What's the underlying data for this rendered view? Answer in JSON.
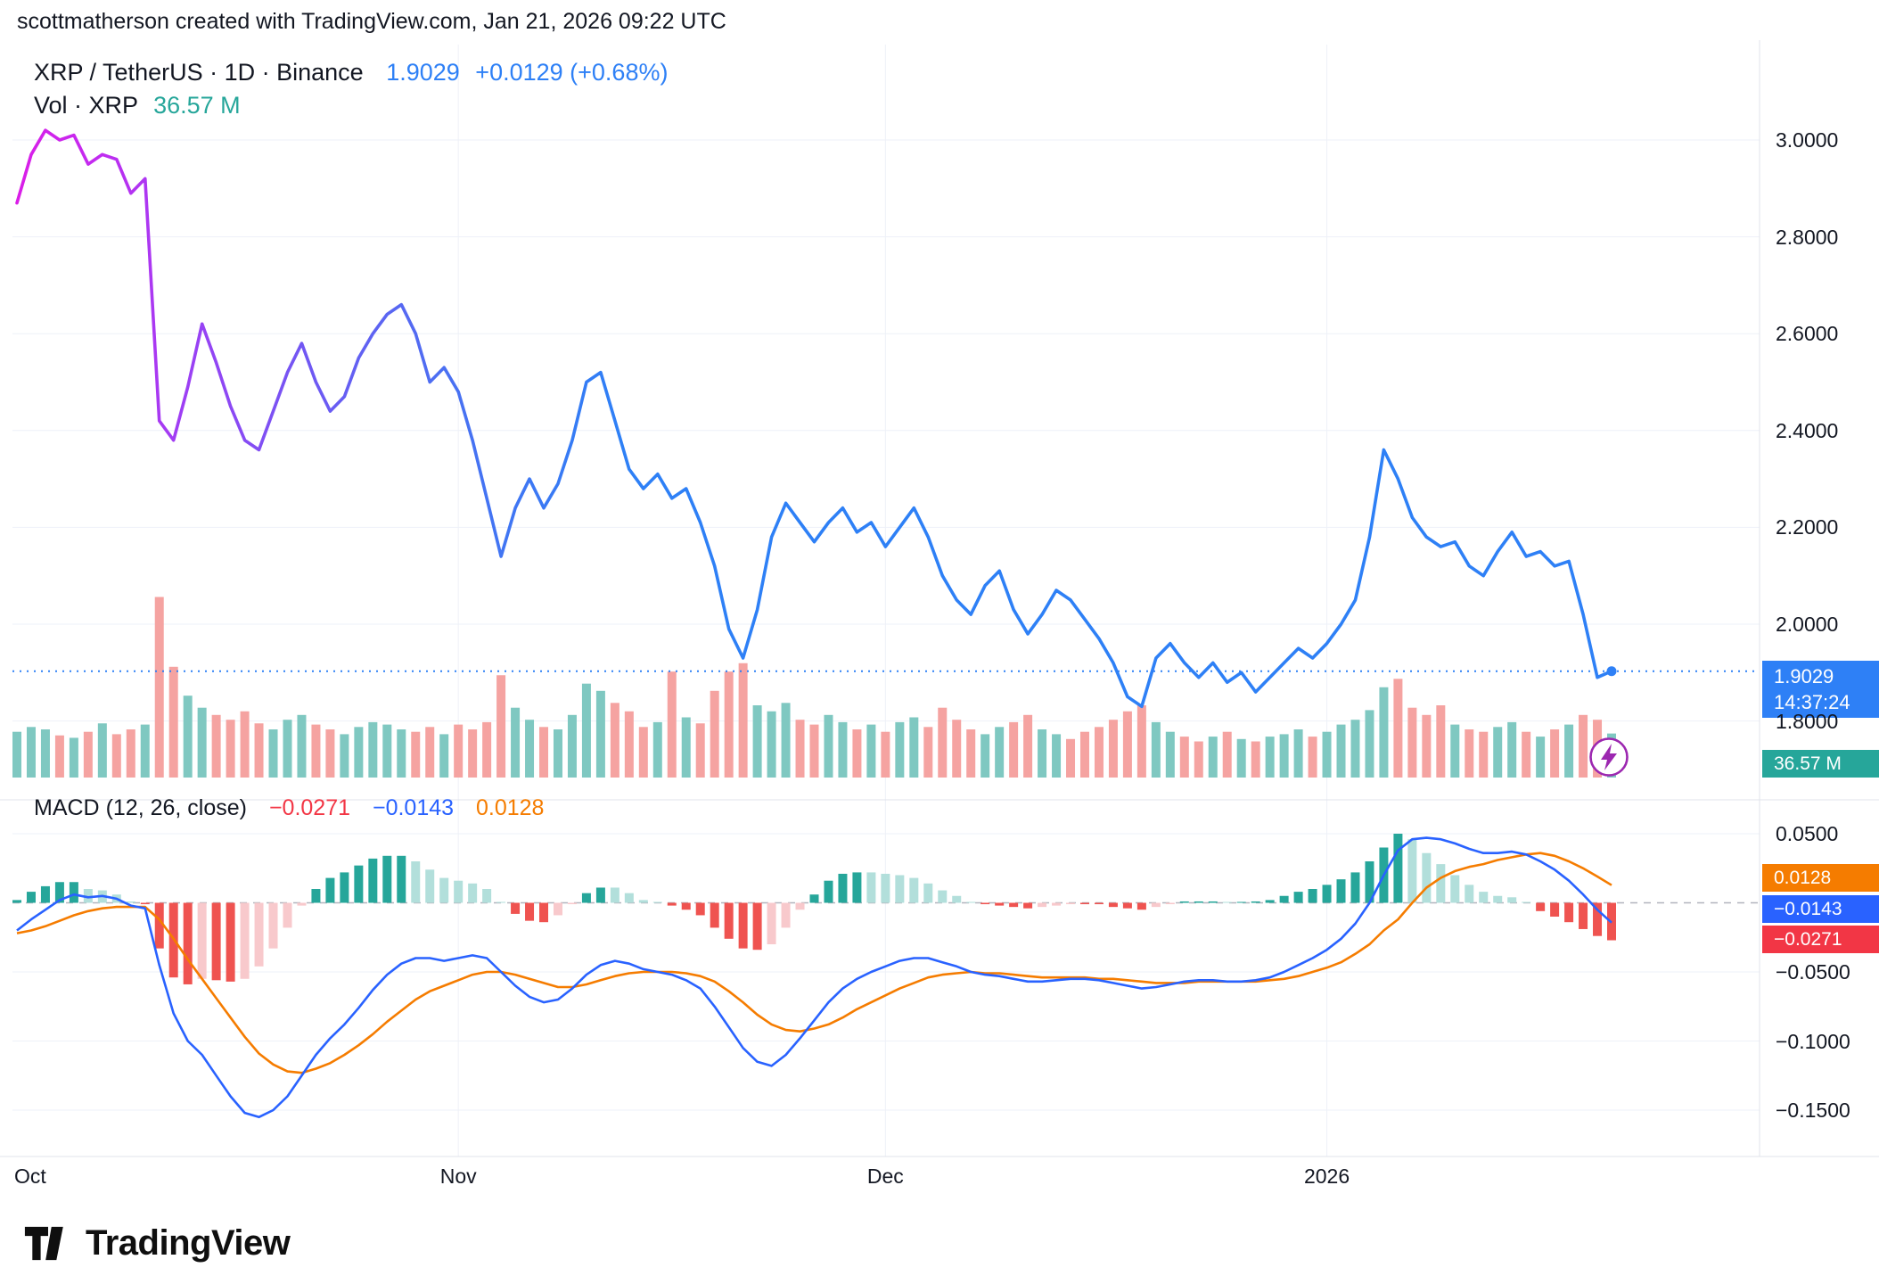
{
  "attribution": "scottmatherson created with TradingView.com, Jan 21, 2026 09:22 UTC",
  "header": {
    "title": "XRP / TetherUS · 1D · Binance",
    "price": "1.9029",
    "change": "+0.0129 (+0.68%)",
    "vol_label": "Vol · XRP",
    "vol_value": "36.57 M"
  },
  "macd_row": {
    "label": "MACD",
    "params": "(12, 26, close)",
    "hist": "−0.0271",
    "macd": "−0.0143",
    "signal": "0.0128"
  },
  "badges": {
    "price": "1.9029",
    "countdown": "14:37:24",
    "volume": "36.57 M",
    "signal": "0.0128",
    "macd": "−0.0143",
    "hist": "−0.0271"
  },
  "logo": {
    "text": "TradingView"
  },
  "colors": {
    "price_line_end": "#2e80f6",
    "macd_line": "#2962ff",
    "signal_line": "#f57c00",
    "vol_up": "#7fc8c1",
    "vol_down": "#f5a3a1",
    "hist_pos": "#26a69a",
    "hist_pos_light": "#b2dfdb",
    "hist_neg": "#ef5350",
    "hist_neg_light": "#f8c9cc",
    "badge_price": "#2e80f6",
    "badge_vol": "#26a69a",
    "badge_signal": "#f57c00",
    "badge_macd": "#2962ff",
    "badge_hist": "#f23645",
    "grid": "#eef1f8",
    "separator": "#e0e3eb",
    "zero_dash": "#b2b5be",
    "flag_purple": "#9c27b0",
    "accent_magenta": "#da1ee8",
    "text": "#131722"
  },
  "chart_data": {
    "type": "line",
    "title": "XRP / TetherUS · 1D · Binance",
    "last_price": 1.9029,
    "x_ticks": [
      {
        "label": "Oct",
        "day": 0
      },
      {
        "label": "Nov",
        "day": 31
      },
      {
        "label": "Dec",
        "day": 61
      },
      {
        "label": "2026",
        "day": 92
      }
    ],
    "price_axis": {
      "ticks": [
        3.0,
        2.8,
        2.6,
        2.4,
        2.2,
        2.0,
        1.8
      ]
    },
    "macd_axis": {
      "ticks": [
        0.05,
        -0.05,
        -0.1,
        -0.15
      ]
    },
    "price_gradient": [
      {
        "o": 0,
        "c": "#da1ee8"
      },
      {
        "o": 0.05,
        "c": "#c22bf0"
      },
      {
        "o": 0.11,
        "c": "#9a41f4"
      },
      {
        "o": 0.18,
        "c": "#7157f3"
      },
      {
        "o": 0.27,
        "c": "#4a70f2"
      },
      {
        "o": 0.38,
        "c": "#2e80f6"
      },
      {
        "o": 1,
        "c": "#2e80f6"
      }
    ],
    "close": [
      2.87,
      2.97,
      3.02,
      3.0,
      3.01,
      2.95,
      2.97,
      2.96,
      2.89,
      2.92,
      2.42,
      2.38,
      2.49,
      2.62,
      2.54,
      2.45,
      2.38,
      2.36,
      2.44,
      2.52,
      2.58,
      2.5,
      2.44,
      2.47,
      2.55,
      2.6,
      2.64,
      2.66,
      2.6,
      2.5,
      2.53,
      2.48,
      2.38,
      2.26,
      2.14,
      2.24,
      2.3,
      2.24,
      2.29,
      2.38,
      2.5,
      2.52,
      2.42,
      2.32,
      2.28,
      2.31,
      2.26,
      2.28,
      2.21,
      2.12,
      1.99,
      1.93,
      2.03,
      2.18,
      2.25,
      2.21,
      2.17,
      2.21,
      2.24,
      2.19,
      2.21,
      2.16,
      2.2,
      2.24,
      2.18,
      2.1,
      2.05,
      2.02,
      2.08,
      2.11,
      2.03,
      1.98,
      2.02,
      2.07,
      2.05,
      2.01,
      1.97,
      1.92,
      1.85,
      1.83,
      1.93,
      1.96,
      1.92,
      1.89,
      1.92,
      1.88,
      1.9,
      1.86,
      1.89,
      1.92,
      1.95,
      1.93,
      1.96,
      2.0,
      2.05,
      2.18,
      2.36,
      2.3,
      2.22,
      2.18,
      2.16,
      2.17,
      2.12,
      2.1,
      2.15,
      2.19,
      2.14,
      2.15,
      2.12,
      2.13,
      2.02,
      1.89,
      1.9029
    ],
    "volume": [
      38,
      42,
      40,
      35,
      33,
      38,
      45,
      36,
      40,
      44,
      150,
      92,
      68,
      58,
      52,
      48,
      55,
      45,
      40,
      48,
      52,
      44,
      40,
      36,
      42,
      46,
      44,
      40,
      38,
      42,
      36,
      44,
      40,
      46,
      85,
      58,
      48,
      42,
      40,
      52,
      78,
      72,
      62,
      55,
      42,
      46,
      88,
      50,
      45,
      72,
      88,
      95,
      60,
      55,
      62,
      48,
      44,
      52,
      46,
      40,
      44,
      38,
      46,
      50,
      42,
      58,
      48,
      40,
      36,
      42,
      46,
      52,
      40,
      36,
      32,
      38,
      42,
      48,
      55,
      60,
      46,
      38,
      34,
      30,
      34,
      38,
      32,
      30,
      34,
      36,
      40,
      34,
      38,
      44,
      48,
      56,
      75,
      82,
      58,
      52,
      60,
      44,
      40,
      38,
      42,
      46,
      38,
      34,
      40,
      44,
      52,
      48,
      36.57
    ],
    "macd": [
      -0.02,
      -0.012,
      -0.005,
      0.002,
      0.006,
      0.004,
      0.005,
      0.003,
      -0.002,
      -0.004,
      -0.045,
      -0.08,
      -0.1,
      -0.11,
      -0.125,
      -0.14,
      -0.152,
      -0.155,
      -0.15,
      -0.14,
      -0.125,
      -0.11,
      -0.098,
      -0.088,
      -0.076,
      -0.063,
      -0.052,
      -0.044,
      -0.04,
      -0.04,
      -0.042,
      -0.04,
      -0.038,
      -0.04,
      -0.05,
      -0.06,
      -0.068,
      -0.072,
      -0.07,
      -0.062,
      -0.052,
      -0.045,
      -0.042,
      -0.044,
      -0.048,
      -0.05,
      -0.052,
      -0.056,
      -0.062,
      -0.075,
      -0.09,
      -0.105,
      -0.115,
      -0.118,
      -0.11,
      -0.098,
      -0.085,
      -0.072,
      -0.062,
      -0.055,
      -0.05,
      -0.046,
      -0.042,
      -0.04,
      -0.04,
      -0.043,
      -0.046,
      -0.05,
      -0.052,
      -0.053,
      -0.055,
      -0.057,
      -0.057,
      -0.056,
      -0.055,
      -0.055,
      -0.056,
      -0.058,
      -0.06,
      -0.062,
      -0.061,
      -0.059,
      -0.057,
      -0.056,
      -0.056,
      -0.057,
      -0.057,
      -0.056,
      -0.054,
      -0.05,
      -0.045,
      -0.04,
      -0.034,
      -0.026,
      -0.015,
      0.0,
      0.02,
      0.038,
      0.046,
      0.047,
      0.046,
      0.043,
      0.039,
      0.036,
      0.036,
      0.037,
      0.035,
      0.03,
      0.024,
      0.016,
      0.006,
      -0.005,
      -0.0143
    ],
    "signal": [
      -0.022,
      -0.02,
      -0.017,
      -0.013,
      -0.009,
      -0.006,
      -0.004,
      -0.003,
      -0.003,
      -0.003,
      -0.012,
      -0.026,
      -0.041,
      -0.055,
      -0.069,
      -0.083,
      -0.097,
      -0.109,
      -0.117,
      -0.122,
      -0.123,
      -0.12,
      -0.116,
      -0.11,
      -0.103,
      -0.095,
      -0.086,
      -0.078,
      -0.07,
      -0.064,
      -0.06,
      -0.056,
      -0.052,
      -0.05,
      -0.05,
      -0.052,
      -0.055,
      -0.058,
      -0.061,
      -0.061,
      -0.059,
      -0.056,
      -0.053,
      -0.051,
      -0.05,
      -0.05,
      -0.05,
      -0.051,
      -0.053,
      -0.057,
      -0.064,
      -0.072,
      -0.081,
      -0.088,
      -0.092,
      -0.093,
      -0.091,
      -0.088,
      -0.083,
      -0.077,
      -0.072,
      -0.067,
      -0.062,
      -0.058,
      -0.054,
      -0.052,
      -0.051,
      -0.05,
      -0.051,
      -0.051,
      -0.052,
      -0.053,
      -0.054,
      -0.054,
      -0.054,
      -0.054,
      -0.055,
      -0.055,
      -0.056,
      -0.057,
      -0.058,
      -0.058,
      -0.058,
      -0.057,
      -0.057,
      -0.057,
      -0.057,
      -0.057,
      -0.056,
      -0.055,
      -0.053,
      -0.05,
      -0.047,
      -0.043,
      -0.037,
      -0.03,
      -0.02,
      -0.012,
      0.0,
      0.011,
      0.018,
      0.023,
      0.026,
      0.028,
      0.031,
      0.033,
      0.035,
      0.036,
      0.034,
      0.03,
      0.025,
      0.019,
      0.0128
    ]
  }
}
